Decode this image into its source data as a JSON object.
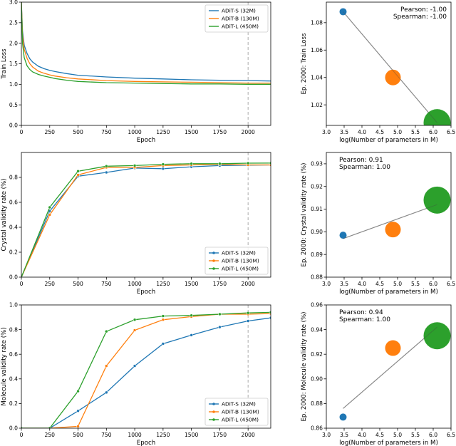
{
  "colors": {
    "s": "#1f77b4",
    "b": "#ff7f0e",
    "l": "#2ca02c",
    "fit": "#aaaaaa",
    "marker_line": "#aaaaaa"
  },
  "chart_data": [
    {
      "id": "loss-curve",
      "type": "line",
      "xlabel": "Epoch",
      "ylabel": "Train Loss",
      "xlim": [
        0,
        2200
      ],
      "ylim": [
        0.0,
        3.0
      ],
      "xticks": [
        "0",
        "250",
        "500",
        "750",
        "1000",
        "1250",
        "1500",
        "1750",
        "2000"
      ],
      "yticks": [
        "0.0",
        "0.5",
        "1.0",
        "1.5",
        "2.0",
        "2.5",
        "3.0"
      ],
      "vline_x": 2000,
      "legend_position": "top-right",
      "series": [
        {
          "name": "ADiT-S (32M)",
          "x": [
            0,
            10,
            25,
            50,
            75,
            100,
            150,
            200,
            250,
            300,
            400,
            500,
            750,
            1000,
            1250,
            1500,
            1750,
            2000,
            2200
          ],
          "y": [
            3.0,
            2.3,
            1.95,
            1.75,
            1.62,
            1.54,
            1.44,
            1.38,
            1.34,
            1.31,
            1.26,
            1.22,
            1.18,
            1.15,
            1.13,
            1.11,
            1.1,
            1.09,
            1.08
          ]
        },
        {
          "name": "ADiT-B (130M)",
          "x": [
            0,
            10,
            25,
            50,
            75,
            100,
            150,
            200,
            250,
            300,
            400,
            500,
            750,
            1000,
            1250,
            1500,
            1750,
            2000,
            2200
          ],
          "y": [
            3.0,
            2.2,
            1.85,
            1.63,
            1.5,
            1.42,
            1.32,
            1.27,
            1.23,
            1.2,
            1.16,
            1.13,
            1.09,
            1.07,
            1.06,
            1.05,
            1.04,
            1.03,
            1.03
          ]
        },
        {
          "name": "ADiT-L (450M)",
          "x": [
            0,
            10,
            25,
            50,
            75,
            100,
            150,
            200,
            250,
            300,
            400,
            500,
            750,
            1000,
            1250,
            1500,
            1750,
            2000,
            2200
          ],
          "y": [
            3.0,
            2.0,
            1.65,
            1.45,
            1.36,
            1.3,
            1.24,
            1.2,
            1.17,
            1.14,
            1.1,
            1.07,
            1.04,
            1.03,
            1.02,
            1.01,
            1.01,
            1.0,
            1.0
          ]
        }
      ]
    },
    {
      "id": "loss-scatter",
      "type": "scatter",
      "xlabel": "log(Number of parameters in M)",
      "ylabel": "Ep. 2000: Train Loss",
      "xlim": [
        3.0,
        6.5
      ],
      "ylim": [
        1.005,
        1.095
      ],
      "xticks": [
        3.0,
        3.5,
        4.0,
        4.5,
        5.0,
        5.5,
        6.0,
        6.5
      ],
      "yticks": [
        1.02,
        1.04,
        1.06,
        1.08
      ],
      "ytick_labels": [
        "1.02",
        "1.04",
        "1.06",
        "1.08"
      ],
      "annotation": [
        "Pearson: -1.00",
        "Spearman: -1.00"
      ],
      "annotation_position": "top-right",
      "points": [
        {
          "name": "ADiT-S (32M)",
          "x": 3.47,
          "y": 1.088,
          "size": 5
        },
        {
          "name": "ADiT-B (130M)",
          "x": 4.87,
          "y": 1.04,
          "size": 11
        },
        {
          "name": "ADiT-L (450M)",
          "x": 6.11,
          "y": 1.007,
          "size": 19
        }
      ],
      "fit": {
        "x": [
          3.47,
          6.11
        ],
        "y": [
          1.088,
          1.007
        ]
      }
    },
    {
      "id": "crystal-curve",
      "type": "line",
      "xlabel": "Epoch",
      "ylabel": "Crystal validity rate (%)",
      "xlim": [
        0,
        2200
      ],
      "ylim": [
        0.0,
        1.0
      ],
      "xticks": [
        "0",
        "250",
        "500",
        "750",
        "1000",
        "1250",
        "1500",
        "1750",
        "2000"
      ],
      "yticks": [
        "0.0",
        "0.2",
        "0.4",
        "0.6",
        "0.8"
      ],
      "vline_x": 2000,
      "legend_position": "bottom-right",
      "series": [
        {
          "name": "ADiT-S (32M)",
          "x": [
            0,
            250,
            500,
            750,
            1000,
            1250,
            1500,
            1750,
            2000,
            2200
          ],
          "y": [
            0.0,
            0.53,
            0.81,
            0.84,
            0.875,
            0.87,
            0.885,
            0.895,
            0.898,
            0.9
          ]
        },
        {
          "name": "ADiT-B (130M)",
          "x": [
            0,
            250,
            500,
            750,
            1000,
            1250,
            1500,
            1750,
            2000,
            2200
          ],
          "y": [
            0.0,
            0.5,
            0.82,
            0.88,
            0.88,
            0.895,
            0.9,
            0.905,
            0.9,
            0.9
          ]
        },
        {
          "name": "ADiT-L (450M)",
          "x": [
            0,
            250,
            500,
            750,
            1000,
            1250,
            1500,
            1750,
            2000,
            2200
          ],
          "y": [
            0.0,
            0.56,
            0.85,
            0.89,
            0.895,
            0.905,
            0.91,
            0.91,
            0.914,
            0.915
          ]
        }
      ]
    },
    {
      "id": "crystal-scatter",
      "type": "scatter",
      "xlabel": "log(Number of parameters in M)",
      "ylabel": "Ep. 2000: Crystal validity rate (%)",
      "xlim": [
        3.0,
        6.5
      ],
      "ylim": [
        0.88,
        0.935
      ],
      "xticks": [
        3.0,
        3.5,
        4.0,
        4.5,
        5.0,
        5.5,
        6.0,
        6.5
      ],
      "yticks": [
        0.88,
        0.89,
        0.9,
        0.91,
        0.92,
        0.93
      ],
      "ytick_labels": [
        "0.88",
        "0.89",
        "0.90",
        "0.91",
        "0.92",
        "0.93"
      ],
      "annotation": [
        "Pearson: 0.91",
        "Spearman: 1.00"
      ],
      "annotation_position": "top-left",
      "points": [
        {
          "name": "ADiT-S (32M)",
          "x": 3.47,
          "y": 0.8985,
          "size": 5
        },
        {
          "name": "ADiT-B (130M)",
          "x": 4.87,
          "y": 0.901,
          "size": 11
        },
        {
          "name": "ADiT-L (450M)",
          "x": 6.11,
          "y": 0.914,
          "size": 19
        }
      ],
      "fit": {
        "x": [
          3.47,
          6.11
        ],
        "y": [
          0.897,
          0.912
        ]
      }
    },
    {
      "id": "molecule-curve",
      "type": "line",
      "xlabel": "Epoch",
      "ylabel": "Molecule validity rate (%)",
      "xlim": [
        0,
        2200
      ],
      "ylim": [
        0.0,
        1.0
      ],
      "xticks": [
        "0",
        "250",
        "500",
        "750",
        "1000",
        "1250",
        "1500",
        "1750",
        "2000"
      ],
      "yticks": [
        "0.0",
        "0.2",
        "0.4",
        "0.6",
        "0.8",
        "1.0"
      ],
      "vline_x": 2000,
      "legend_position": "bottom-right",
      "series": [
        {
          "name": "ADiT-S (32M)",
          "x": [
            0,
            250,
            500,
            750,
            1000,
            1250,
            1500,
            1750,
            2000,
            2200
          ],
          "y": [
            0.0,
            0.0,
            0.14,
            0.29,
            0.505,
            0.685,
            0.755,
            0.82,
            0.87,
            0.895
          ]
        },
        {
          "name": "ADiT-B (130M)",
          "x": [
            0,
            250,
            500,
            750,
            1000,
            1250,
            1500,
            1750,
            2000,
            2200
          ],
          "y": [
            0.0,
            0.0,
            0.015,
            0.505,
            0.795,
            0.88,
            0.905,
            0.925,
            0.925,
            0.93
          ]
        },
        {
          "name": "ADiT-L (450M)",
          "x": [
            0,
            250,
            500,
            750,
            1000,
            1250,
            1500,
            1750,
            2000,
            2200
          ],
          "y": [
            0.0,
            0.0,
            0.3,
            0.785,
            0.88,
            0.91,
            0.915,
            0.925,
            0.935,
            0.94
          ]
        }
      ]
    },
    {
      "id": "molecule-scatter",
      "type": "scatter",
      "xlabel": "log(Number of parameters in M)",
      "ylabel": "Ep. 2000: Molecule validity rate (%)",
      "xlim": [
        3.0,
        6.5
      ],
      "ylim": [
        0.86,
        0.96
      ],
      "xticks": [
        3.0,
        3.5,
        4.0,
        4.5,
        5.0,
        5.5,
        6.0,
        6.5
      ],
      "yticks": [
        0.86,
        0.88,
        0.9,
        0.92,
        0.94,
        0.96
      ],
      "ytick_labels": [
        "0.86",
        "0.88",
        "0.90",
        "0.92",
        "0.94",
        "0.96"
      ],
      "annotation": [
        "Pearson: 0.94",
        "Spearman: 1.00"
      ],
      "annotation_position": "top-left",
      "points": [
        {
          "name": "ADiT-S (32M)",
          "x": 3.47,
          "y": 0.869,
          "size": 5
        },
        {
          "name": "ADiT-B (130M)",
          "x": 4.87,
          "y": 0.925,
          "size": 11
        },
        {
          "name": "ADiT-L (450M)",
          "x": 6.11,
          "y": 0.935,
          "size": 19
        }
      ],
      "fit": {
        "x": [
          3.47,
          6.11
        ],
        "y": [
          0.876,
          0.942
        ]
      }
    }
  ]
}
